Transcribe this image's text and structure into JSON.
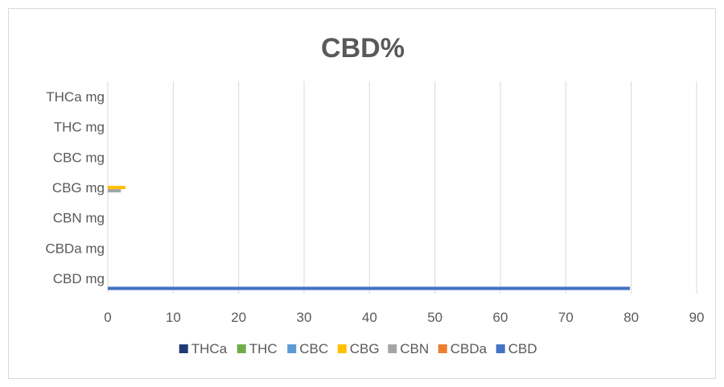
{
  "chart_data": {
    "type": "bar",
    "orientation": "horizontal",
    "title": "CBD%",
    "categories": [
      "CBD mg",
      "CBDa mg",
      "CBN mg",
      "CBG mg",
      "CBC mg",
      "THC mg",
      "THCa mg"
    ],
    "xlim": [
      0,
      90
    ],
    "xticks": [
      "0",
      "10",
      "20",
      "30",
      "40",
      "50",
      "60",
      "70",
      "80",
      "90"
    ],
    "grid": true,
    "legend_position": "bottom",
    "series": [
      {
        "name": "THCa",
        "color": "#1f3b73",
        "values": [
          0,
          0,
          0,
          0,
          0,
          0,
          0
        ]
      },
      {
        "name": "THC",
        "color": "#70ad47",
        "values": [
          0,
          0,
          0,
          0,
          0,
          0,
          0
        ]
      },
      {
        "name": "CBC",
        "color": "#5b9bd5",
        "values": [
          0,
          0,
          0,
          0,
          0,
          0,
          0
        ]
      },
      {
        "name": "CBG",
        "color": "#ffc000",
        "values": [
          0,
          0,
          0,
          2.7,
          0,
          0,
          0
        ]
      },
      {
        "name": "CBN",
        "color": "#a5a5a5",
        "values": [
          0,
          0,
          0,
          2.0,
          0,
          0,
          0
        ]
      },
      {
        "name": "CBDa",
        "color": "#ed7d31",
        "values": [
          0,
          0,
          0,
          0,
          0,
          0,
          0
        ]
      },
      {
        "name": "CBD",
        "color": "#4472c4",
        "values": [
          79.8,
          0,
          0,
          0,
          0,
          0,
          0
        ]
      }
    ]
  }
}
